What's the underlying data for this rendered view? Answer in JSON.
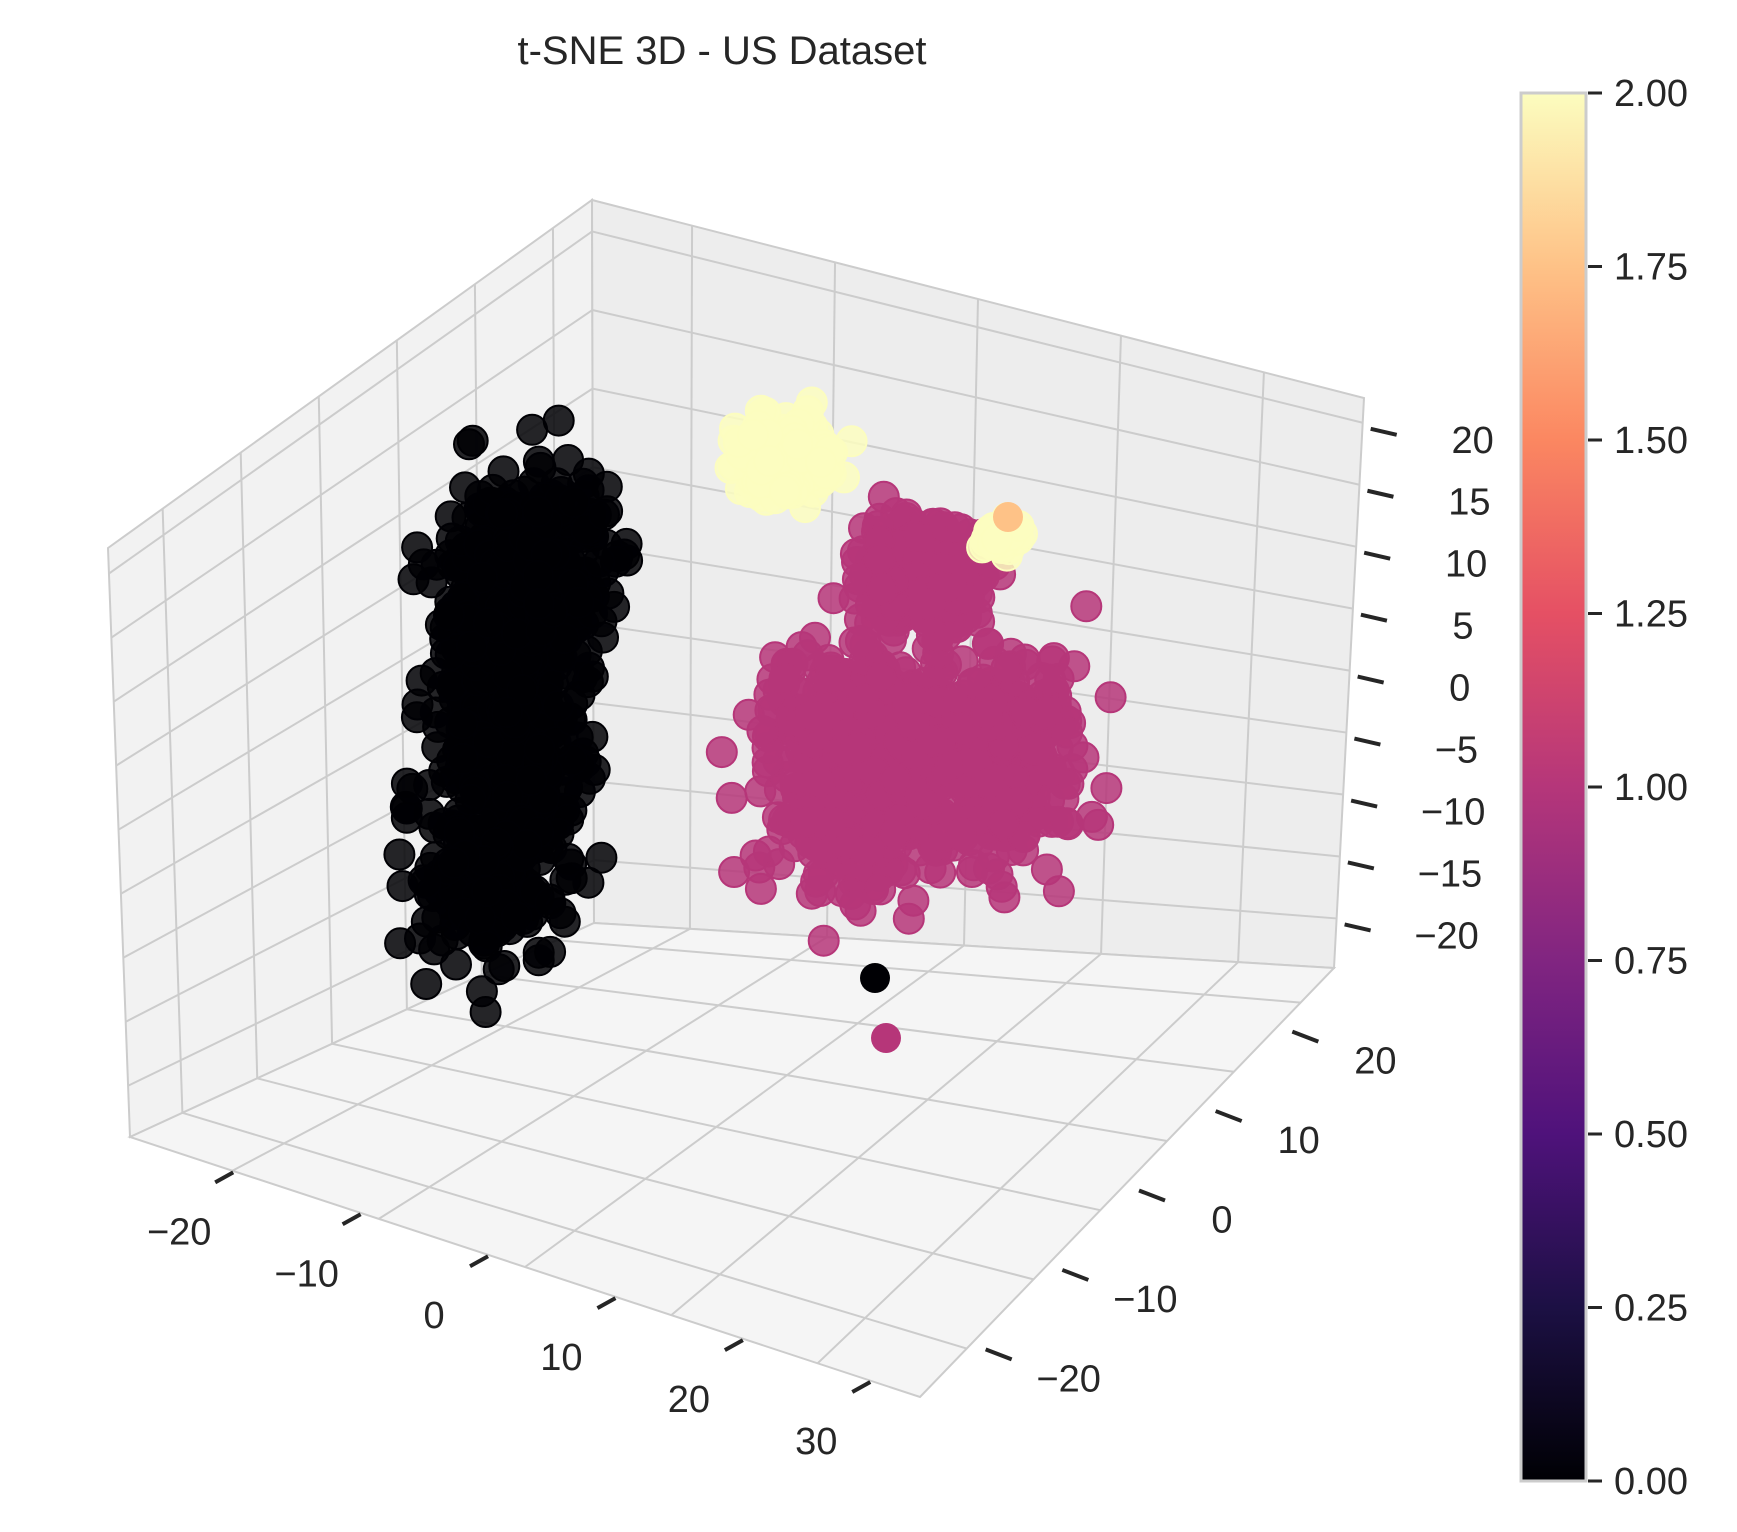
{
  "chart_data": {
    "type": "scatter",
    "dimensions": 3,
    "title": "t-SNE 3D - US Dataset",
    "xlabel": "",
    "ylabel": "",
    "zlabel": "",
    "x_ticks": [
      "−20",
      "−10",
      "0",
      "10",
      "20",
      "30"
    ],
    "y_ticks": [
      "−20",
      "−10",
      "0",
      "10",
      "20"
    ],
    "z_ticks": [
      "−20",
      "−15",
      "−10",
      "−5",
      "0",
      "5",
      "10",
      "15",
      "20"
    ],
    "grid": true,
    "colormap": "magma",
    "colorbar": {
      "vmin": 0.0,
      "vmax": 2.0,
      "ticks": [
        "0.00",
        "0.25",
        "0.50",
        "0.75",
        "1.00",
        "1.25",
        "1.50",
        "1.75",
        "2.00"
      ]
    },
    "clusters": [
      {
        "value": 0,
        "color": "#000004",
        "x_range": [
          -25,
          0
        ],
        "y_range": [
          -5,
          25
        ],
        "z_range": [
          -22,
          15
        ],
        "approx_count": 900
      },
      {
        "value": 1,
        "color": "#b63679",
        "x_range": [
          5,
          32
        ],
        "y_range": [
          -20,
          5
        ],
        "z_range": [
          -22,
          12
        ],
        "approx_count": 1100
      },
      {
        "value": 2,
        "color": "#fcfdbf",
        "x_range": [
          -5,
          10
        ],
        "y_range": [
          -10,
          5
        ],
        "z_range": [
          12,
          22
        ],
        "approx_count": 200
      }
    ]
  }
}
